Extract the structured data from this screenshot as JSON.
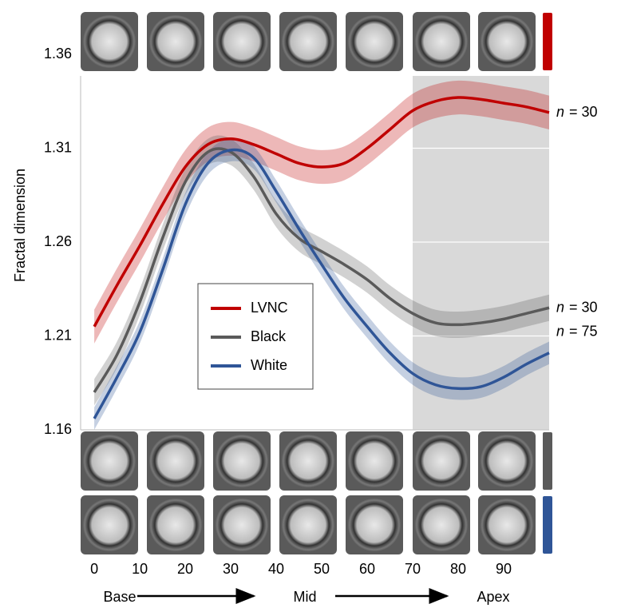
{
  "chart_data": {
    "type": "line",
    "y_label": "Fractal dimension",
    "x": [
      0,
      5,
      10,
      15,
      20,
      25,
      30,
      35,
      40,
      45,
      50,
      55,
      60,
      65,
      70,
      75,
      80,
      85,
      90,
      95,
      100
    ],
    "series": [
      {
        "name": "LVNC",
        "color": "#c00000",
        "ci": 0.009,
        "n_symbol": "n",
        "n_text": "= 30",
        "values": [
          1.215,
          1.237,
          1.258,
          1.28,
          1.3,
          1.312,
          1.315,
          1.312,
          1.307,
          1.302,
          1.3,
          1.302,
          1.31,
          1.32,
          1.33,
          1.335,
          1.337,
          1.336,
          1.334,
          1.332,
          1.329
        ]
      },
      {
        "name": "Black",
        "color": "#5a5a5a",
        "ci": 0.007,
        "n_symbol": "n",
        "n_text": "= 30",
        "values": [
          1.18,
          1.2,
          1.228,
          1.262,
          1.292,
          1.308,
          1.308,
          1.295,
          1.275,
          1.262,
          1.255,
          1.248,
          1.24,
          1.23,
          1.222,
          1.217,
          1.216,
          1.217,
          1.219,
          1.222,
          1.225
        ]
      },
      {
        "name": "White",
        "color": "#2f5597",
        "ci": 0.006,
        "n_symbol": "n",
        "n_text": "= 75",
        "values": [
          1.166,
          1.188,
          1.212,
          1.245,
          1.28,
          1.302,
          1.309,
          1.305,
          1.287,
          1.267,
          1.248,
          1.23,
          1.215,
          1.201,
          1.19,
          1.184,
          1.182,
          1.183,
          1.188,
          1.195,
          1.201
        ]
      }
    ],
    "xlim": [
      -3,
      100
    ],
    "xticks": [
      0,
      10,
      20,
      30,
      40,
      50,
      60,
      70,
      80,
      90
    ],
    "ylim": [
      1.16,
      1.36
    ],
    "yticks": [
      1.16,
      1.21,
      1.26,
      1.31,
      1.36
    ],
    "shaded_xrange": [
      70,
      100
    ],
    "region_labels": [
      "Base",
      "Mid",
      "Apex"
    ],
    "grid": true
  }
}
